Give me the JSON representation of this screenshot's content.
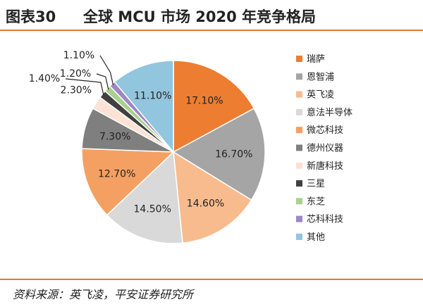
{
  "header": {
    "figure_number": "图表30",
    "title": "全球 MCU 市场 2020 年竞争格局"
  },
  "chart_data": {
    "type": "pie",
    "title": "全球 MCU 市场 2020 年竞争格局",
    "legend_position": "right",
    "slices": [
      {
        "label": "瑞萨",
        "value": 17.1,
        "value_label": "17.10%",
        "color": "#ed7d31"
      },
      {
        "label": "恩智浦",
        "value": 16.7,
        "value_label": "16.70%",
        "color": "#a5a5a5"
      },
      {
        "label": "英飞凌",
        "value": 14.6,
        "value_label": "14.60%",
        "color": "#f8bb8e"
      },
      {
        "label": "意法半导体",
        "value": 14.5,
        "value_label": "14.50%",
        "color": "#d9d9d9"
      },
      {
        "label": "微芯科技",
        "value": 12.7,
        "value_label": "12.70%",
        "color": "#f4a063"
      },
      {
        "label": "德州仪器",
        "value": 7.3,
        "value_label": "7.30%",
        "color": "#7f7f7f"
      },
      {
        "label": "新唐科技",
        "value": 2.3,
        "value_label": "2.30%",
        "color": "#fbe2d5"
      },
      {
        "label": "三星",
        "value": 1.4,
        "value_label": "1.40%",
        "color": "#404040"
      },
      {
        "label": "东芝",
        "value": 1.2,
        "value_label": "1.20%",
        "color": "#a9d18e"
      },
      {
        "label": "芯科科技",
        "value": 1.1,
        "value_label": "1.10%",
        "color": "#9e87c3"
      },
      {
        "label": "其他",
        "value": 11.1,
        "value_label": "11.10%",
        "color": "#92c5de"
      }
    ]
  },
  "footer": {
    "source": "资料来源：英飞凌，平安证券研究所"
  }
}
